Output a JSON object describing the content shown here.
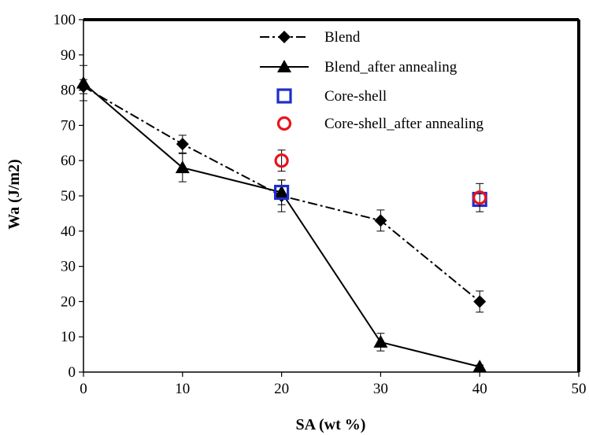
{
  "chart_data": {
    "type": "line",
    "xlabel": "SA (wt %)",
    "ylabel": "Wa (J/m2)",
    "xlim": [
      0,
      50
    ],
    "ylim": [
      0,
      100
    ],
    "xticks": [
      0,
      10,
      20,
      30,
      40,
      50
    ],
    "yticks": [
      0,
      10,
      20,
      30,
      40,
      50,
      60,
      70,
      80,
      90,
      100
    ],
    "grid": false,
    "legend": "top-center",
    "series": [
      {
        "name": "Blend",
        "style": "dash-dot line, filled diamond markers",
        "color": "#000000",
        "x": [
          0,
          10,
          20,
          30,
          40
        ],
        "y": [
          81,
          64.7,
          50,
          43,
          20
        ],
        "err": [
          2,
          2.5,
          4.5,
          3,
          3
        ]
      },
      {
        "name": "Blend_after annealing",
        "style": "solid line, filled triangle markers",
        "color": "#000000",
        "x": [
          0,
          10,
          20,
          30,
          40
        ],
        "y": [
          82,
          58,
          51,
          8.5,
          1.5
        ],
        "err": [
          5,
          4,
          3.5,
          2.5,
          0.5
        ]
      },
      {
        "name": "Core-shell",
        "style": "open square markers",
        "color": "#1f2dcc",
        "x": [
          20,
          40
        ],
        "y": [
          51,
          49
        ],
        "err": [
          0,
          0
        ]
      },
      {
        "name": "Core-shell_after annealing",
        "style": "open circle markers",
        "color": "#e8141b",
        "x": [
          20,
          40
        ],
        "y": [
          60,
          49.5
        ],
        "err": [
          3,
          4
        ]
      }
    ]
  }
}
